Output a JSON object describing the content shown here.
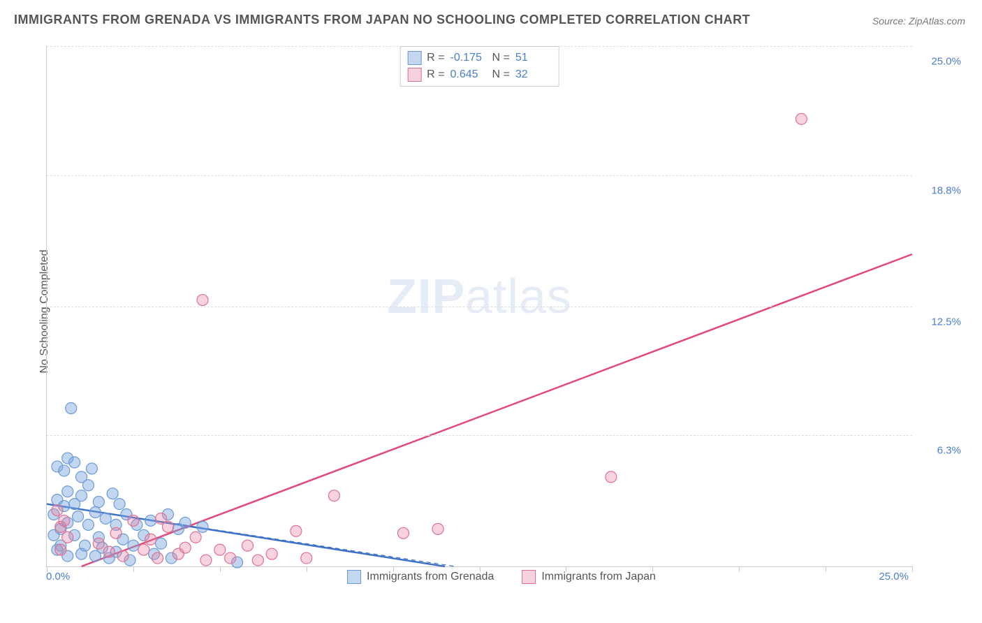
{
  "title": "IMMIGRANTS FROM GRENADA VS IMMIGRANTS FROM JAPAN NO SCHOOLING COMPLETED CORRELATION CHART",
  "source": "Source: ZipAtlas.com",
  "ylabel": "No Schooling Completed",
  "watermark_bold": "ZIP",
  "watermark_rest": "atlas",
  "chart": {
    "type": "scatter",
    "xlim": [
      0,
      25
    ],
    "ylim": [
      0,
      25
    ],
    "y_ticks": [
      6.3,
      12.5,
      18.8,
      25.0
    ],
    "y_tick_labels": [
      "6.3%",
      "12.5%",
      "18.8%",
      "25.0%"
    ],
    "x_tick_positions": [
      0,
      2.5,
      5,
      7.5,
      10,
      12.5,
      15,
      17.5,
      20,
      22.5,
      25
    ],
    "x_left_label": "0.0%",
    "x_right_label": "25.0%",
    "grid_color": "#dddddd",
    "axis_color": "#cccccc",
    "background_color": "#ffffff",
    "series": [
      {
        "name": "Immigrants from Grenada",
        "color_fill": "rgba(120,165,220,0.45)",
        "color_stroke": "#6a9bd8",
        "swatch_fill": "#c3d7ef",
        "swatch_border": "#6a9bd8",
        "r_value": "-0.175",
        "n_value": "51",
        "marker_radius": 8,
        "trend": {
          "x1": 0,
          "y1": 3.0,
          "x2": 11.5,
          "y2": 0.0,
          "color": "#3d72c6",
          "width": 2.5,
          "dash": "none",
          "extra_dash_to_x": 11.5
        },
        "trend_dash": {
          "x1": 0,
          "y1": 3.0,
          "x2": 11.8,
          "y2": 0.0,
          "color": "#3d72c6",
          "width": 1.2,
          "dash": "6,5"
        },
        "points": [
          [
            0.2,
            2.5
          ],
          [
            0.3,
            3.2
          ],
          [
            0.4,
            1.8
          ],
          [
            0.5,
            2.9
          ],
          [
            0.3,
            4.8
          ],
          [
            0.5,
            4.6
          ],
          [
            0.6,
            3.6
          ],
          [
            0.6,
            2.1
          ],
          [
            0.8,
            3.0
          ],
          [
            0.8,
            1.5
          ],
          [
            0.9,
            2.4
          ],
          [
            1.0,
            3.4
          ],
          [
            1.0,
            0.6
          ],
          [
            1.1,
            1.0
          ],
          [
            1.2,
            2.0
          ],
          [
            1.2,
            3.9
          ],
          [
            1.4,
            2.6
          ],
          [
            1.4,
            0.5
          ],
          [
            1.5,
            1.4
          ],
          [
            1.5,
            3.1
          ],
          [
            1.6,
            0.9
          ],
          [
            1.7,
            2.3
          ],
          [
            1.8,
            0.4
          ],
          [
            1.9,
            3.5
          ],
          [
            2.0,
            2.0
          ],
          [
            2.0,
            0.7
          ],
          [
            2.2,
            1.3
          ],
          [
            2.3,
            2.5
          ],
          [
            2.4,
            0.3
          ],
          [
            2.5,
            1.0
          ],
          [
            2.6,
            2.0
          ],
          [
            2.8,
            1.5
          ],
          [
            3.0,
            2.2
          ],
          [
            3.1,
            0.6
          ],
          [
            3.3,
            1.1
          ],
          [
            3.5,
            2.5
          ],
          [
            3.6,
            0.4
          ],
          [
            3.8,
            1.8
          ],
          [
            4.0,
            2.1
          ],
          [
            4.5,
            1.9
          ],
          [
            0.6,
            5.2
          ],
          [
            0.8,
            5.0
          ],
          [
            0.4,
            1.0
          ],
          [
            0.6,
            0.5
          ],
          [
            1.0,
            4.3
          ],
          [
            1.3,
            4.7
          ],
          [
            5.5,
            0.2
          ],
          [
            0.7,
            7.6
          ],
          [
            0.3,
            0.8
          ],
          [
            0.2,
            1.5
          ],
          [
            2.1,
            3.0
          ]
        ]
      },
      {
        "name": "Immigrants from Japan",
        "color_fill": "rgba(230,130,160,0.35)",
        "color_stroke": "#e06f94",
        "swatch_fill": "#f6d2dd",
        "swatch_border": "#e06f94",
        "r_value": "0.645",
        "n_value": "32",
        "marker_radius": 8,
        "trend": {
          "x1": 1.0,
          "y1": 0.0,
          "x2": 25.0,
          "y2": 15.0,
          "color": "#e04a78",
          "width": 2.5,
          "dash": "none"
        },
        "points": [
          [
            0.3,
            2.7
          ],
          [
            0.4,
            1.9
          ],
          [
            0.5,
            2.2
          ],
          [
            0.4,
            0.8
          ],
          [
            0.6,
            1.4
          ],
          [
            1.5,
            1.1
          ],
          [
            1.8,
            0.7
          ],
          [
            2.0,
            1.6
          ],
          [
            2.2,
            0.5
          ],
          [
            2.5,
            2.2
          ],
          [
            2.8,
            0.8
          ],
          [
            3.0,
            1.3
          ],
          [
            3.2,
            0.4
          ],
          [
            3.5,
            1.9
          ],
          [
            3.8,
            0.6
          ],
          [
            4.0,
            0.9
          ],
          [
            4.3,
            1.4
          ],
          [
            4.6,
            0.3
          ],
          [
            5.0,
            0.8
          ],
          [
            5.3,
            0.4
          ],
          [
            5.8,
            1.0
          ],
          [
            6.1,
            0.3
          ],
          [
            6.5,
            0.6
          ],
          [
            7.2,
            1.7
          ],
          [
            7.5,
            0.4
          ],
          [
            8.3,
            3.4
          ],
          [
            10.3,
            1.6
          ],
          [
            11.3,
            1.8
          ],
          [
            4.5,
            12.8
          ],
          [
            16.3,
            4.3
          ],
          [
            21.8,
            21.5
          ],
          [
            3.3,
            2.3
          ]
        ]
      }
    ]
  },
  "legend_bottom": [
    {
      "label": "Immigrants from Grenada",
      "fill": "#c3d7ef",
      "border": "#6a9bd8"
    },
    {
      "label": "Immigrants from Japan",
      "fill": "#f6d2dd",
      "border": "#e06f94"
    }
  ]
}
